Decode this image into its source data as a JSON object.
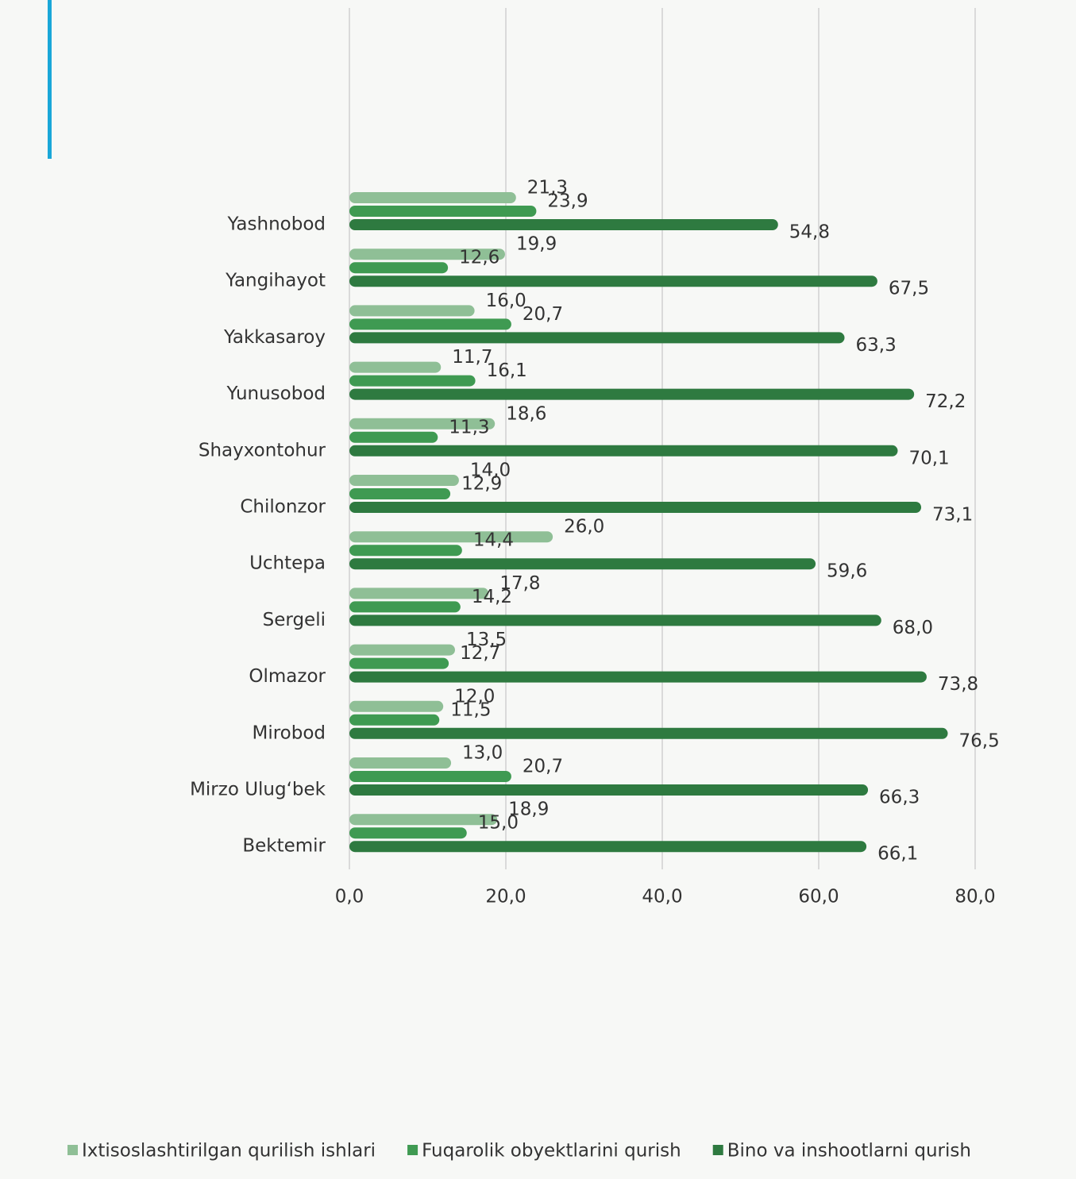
{
  "chart_data": {
    "type": "bar",
    "orientation": "horizontal",
    "categories": [
      "Yashnobod",
      "Yangihayot",
      "Yakkasaroy",
      "Yunusobod",
      "Shayxontohur",
      "Chilonzor",
      "Uchtepa",
      "Sergeli",
      "Olmazor",
      "Mirobod",
      "Mirzo Ulug‘bek",
      "Bektemir"
    ],
    "series": [
      {
        "name": "Ixtisoslashtirilgan qurilish ishlari",
        "color": "#8fbf96",
        "values": [
          21.3,
          19.9,
          16.0,
          11.7,
          18.6,
          14.0,
          26.0,
          17.8,
          13.5,
          12.0,
          13.0,
          18.9
        ],
        "value_labels": [
          "21,3",
          "19,9",
          "16,0",
          "11,7",
          "18,6",
          "14,0",
          "26,0",
          "17,8",
          "13,5",
          "12,0",
          "13,0",
          "18,9"
        ]
      },
      {
        "name": "Fuqarolik obyektlarini qurish",
        "color": "#3f9a52",
        "values": [
          23.9,
          12.6,
          20.7,
          16.1,
          11.3,
          12.9,
          14.4,
          14.2,
          12.7,
          11.5,
          20.7,
          15.0
        ],
        "value_labels": [
          "23,9",
          "12,6",
          "20,7",
          "16,1",
          "11,3",
          "12,9",
          "14,4",
          "14,2",
          "12,7",
          "11,5",
          "20,7",
          "15,0"
        ]
      },
      {
        "name": "Bino va inshootlarni qurish",
        "color": "#2e7a40",
        "values": [
          54.8,
          67.5,
          63.3,
          72.2,
          70.1,
          73.1,
          59.6,
          68.0,
          73.8,
          76.5,
          66.3,
          66.1
        ],
        "value_labels": [
          "54,8",
          "67,5",
          "63,3",
          "72,2",
          "70,1",
          "73,1",
          "59,6",
          "68,0",
          "73,8",
          "76,5",
          "66,3",
          "66,1"
        ]
      }
    ],
    "xlim": [
      0,
      80
    ],
    "xticks": [
      {
        "value": 0,
        "label": "0,0"
      },
      {
        "value": 20,
        "label": "20,0"
      },
      {
        "value": 40,
        "label": "40,0"
      },
      {
        "value": 60,
        "label": "60,0"
      },
      {
        "value": 80,
        "label": "80,0"
      }
    ],
    "grid": true,
    "legend": "bottom"
  }
}
